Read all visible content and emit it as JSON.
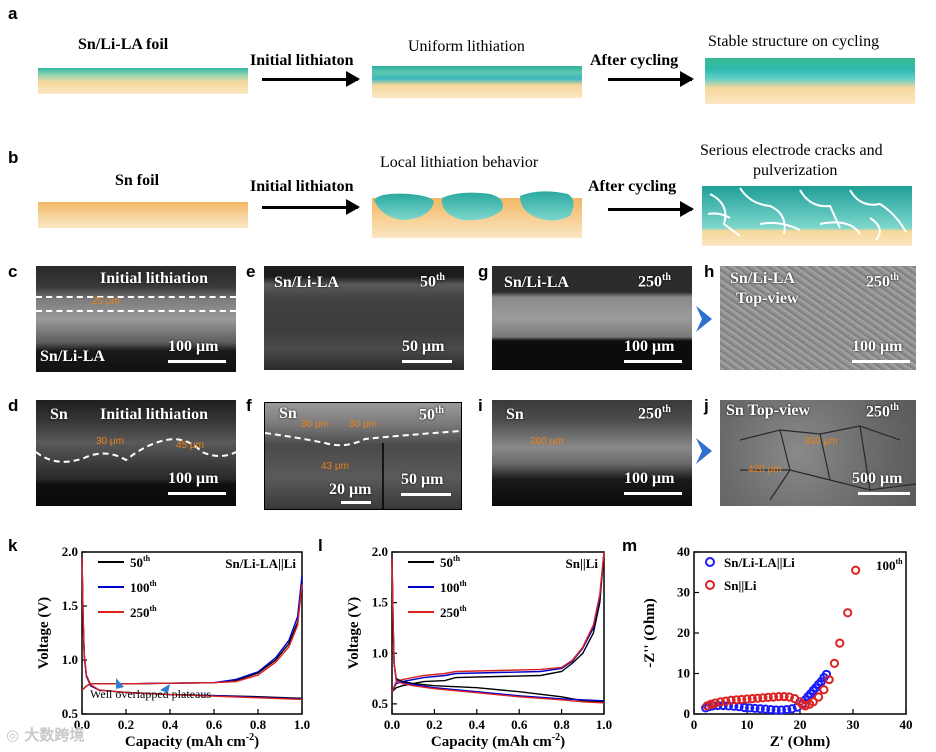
{
  "panels": {
    "a": {
      "letter": "a",
      "left_label": "Sn/Li-LA foil",
      "arrow1": "Initial lithiaton",
      "mid_label": "Uniform lithiation",
      "arrow2": "After cycling",
      "right_label": "Stable structure on cycling"
    },
    "b": {
      "letter": "b",
      "left_label": "Sn foil",
      "arrow1": "Initial lithiaton",
      "mid_label": "Local lithiation behavior",
      "arrow2": "After cycling",
      "right_label_1": "Serious electrode cracks and",
      "right_label_2": "pulverization"
    },
    "c": {
      "letter": "c",
      "title": "Initial lithiation",
      "sample": "Sn/Li-LA",
      "measure": "25 μm",
      "scale": "100 μm"
    },
    "d": {
      "letter": "d",
      "sample": "Sn",
      "title": "Initial lithiation",
      "m1": "30 μm",
      "m2": "45 μm",
      "scale": "100 μm"
    },
    "e": {
      "letter": "e",
      "sample": "Sn/Li-LA",
      "cycle": "50",
      "cycle_sup": "th",
      "scale": "50 μm"
    },
    "f": {
      "letter": "f",
      "sample": "Sn",
      "cycle": "50",
      "cycle_sup": "th",
      "m1": "36 μm",
      "m2": "30 μm",
      "m3": "43 μm",
      "scale1": "20 μm",
      "scale2": "50 μm"
    },
    "g": {
      "letter": "g",
      "sample": "Sn/Li-LA",
      "cycle": "250",
      "cycle_sup": "th",
      "scale": "100 μm"
    },
    "i": {
      "letter": "i",
      "sample": "Sn",
      "cycle": "250",
      "cycle_sup": "th",
      "m1": "260 μm",
      "scale": "100 μm"
    },
    "h": {
      "letter": "h",
      "sample": "Sn/Li-LA",
      "sub": "Top-view",
      "cycle": "250",
      "cycle_sup": "th",
      "scale": "100 μm"
    },
    "j": {
      "letter": "j",
      "sample": "Sn Top-view",
      "cycle": "250",
      "cycle_sup": "th",
      "m1": "330 μm",
      "m2": "420 μm",
      "scale": "500 μm"
    },
    "k": {
      "letter": "k"
    },
    "l": {
      "letter": "l"
    },
    "m": {
      "letter": "m"
    }
  },
  "watermark": "大数跨境",
  "colors": {
    "teal": "#2bb5a8",
    "sand": "#f6c98a",
    "blue_chev": "#2f6fd0",
    "orange": "#e8801a"
  },
  "chart_data": [
    {
      "id": "k",
      "type": "line",
      "xlabel": "Capacity (mAh cm",
      "xlabel_sup": "-2",
      "xlabel_end": ")",
      "ylabel": "Voltage (V)",
      "xlim": [
        0,
        1.0
      ],
      "ylim": [
        0.5,
        2.0
      ],
      "xticks": [
        "0.0",
        "0.2",
        "0.4",
        "0.6",
        "0.8",
        "1.0"
      ],
      "yticks": [
        "0.5",
        "1.0",
        "1.5",
        "2.0"
      ],
      "legend": [
        {
          "name": "50",
          "sup": "th",
          "color": "#000000"
        },
        {
          "name": "100",
          "sup": "th",
          "color": "#0000cc"
        },
        {
          "name": "250",
          "sup": "th",
          "color": "#dd2222"
        }
      ],
      "annotation": "Sn/Li-LA||Li",
      "note": "Well overlapped plateaus",
      "series": [
        {
          "name": "50th charge",
          "color": "#000000",
          "x": [
            0.0,
            0.01,
            0.02,
            0.04,
            0.08,
            0.2,
            0.4,
            0.6,
            0.7,
            0.8,
            0.88,
            0.94,
            0.98,
            1.0
          ],
          "y": [
            0.72,
            0.74,
            0.76,
            0.78,
            0.78,
            0.78,
            0.785,
            0.79,
            0.81,
            0.88,
            1.0,
            1.15,
            1.35,
            1.72
          ]
        },
        {
          "name": "100th charge",
          "color": "#0000cc",
          "x": [
            0.0,
            0.01,
            0.02,
            0.04,
            0.08,
            0.2,
            0.4,
            0.6,
            0.7,
            0.8,
            0.88,
            0.94,
            0.98,
            1.0
          ],
          "y": [
            0.72,
            0.74,
            0.76,
            0.78,
            0.78,
            0.78,
            0.785,
            0.79,
            0.82,
            0.89,
            1.02,
            1.18,
            1.4,
            1.78
          ]
        },
        {
          "name": "250th charge",
          "color": "#dd2222",
          "x": [
            0.0,
            0.01,
            0.02,
            0.04,
            0.08,
            0.2,
            0.4,
            0.6,
            0.7,
            0.8,
            0.88,
            0.94,
            0.98,
            1.0
          ],
          "y": [
            0.72,
            0.74,
            0.76,
            0.78,
            0.78,
            0.78,
            0.785,
            0.79,
            0.8,
            0.86,
            0.98,
            1.12,
            1.32,
            1.7
          ]
        },
        {
          "name": "50th discharge",
          "color": "#000000",
          "x": [
            0.0,
            0.005,
            0.01,
            0.02,
            0.04,
            0.08,
            0.2,
            0.4,
            0.6,
            0.8,
            1.0
          ],
          "y": [
            1.95,
            1.4,
            1.05,
            0.85,
            0.76,
            0.72,
            0.7,
            0.68,
            0.67,
            0.66,
            0.645
          ]
        },
        {
          "name": "100th discharge",
          "color": "#0000cc",
          "x": [
            0.0,
            0.005,
            0.01,
            0.02,
            0.04,
            0.08,
            0.2,
            0.4,
            0.6,
            0.8,
            1.0
          ],
          "y": [
            1.95,
            1.4,
            1.05,
            0.85,
            0.76,
            0.72,
            0.7,
            0.68,
            0.67,
            0.655,
            0.64
          ]
        },
        {
          "name": "250th discharge",
          "color": "#dd2222",
          "x": [
            0.0,
            0.005,
            0.01,
            0.02,
            0.04,
            0.08,
            0.2,
            0.4,
            0.6,
            0.8,
            1.0
          ],
          "y": [
            1.95,
            1.42,
            1.07,
            0.86,
            0.77,
            0.72,
            0.7,
            0.68,
            0.665,
            0.65,
            0.635
          ]
        }
      ]
    },
    {
      "id": "l",
      "type": "line",
      "xlabel": "Capacity (mAh cm",
      "xlabel_sup": "-2",
      "xlabel_end": ")",
      "ylabel": "Voltage (V)",
      "xlim": [
        0,
        1.0
      ],
      "ylim": [
        0.4,
        2.0
      ],
      "xticks": [
        "0.0",
        "0.2",
        "0.4",
        "0.6",
        "0.8",
        "1.0"
      ],
      "yticks": [
        "0.5",
        "1.0",
        "1.5",
        "2.0"
      ],
      "legend": [
        {
          "name": "50",
          "sup": "th",
          "color": "#000000"
        },
        {
          "name": "100",
          "sup": "th",
          "color": "#0000cc"
        },
        {
          "name": "250",
          "sup": "th",
          "color": "#dd2222"
        }
      ],
      "annotation": "Sn||Li",
      "series": [
        {
          "name": "50th charge",
          "color": "#000000",
          "x": [
            0.0,
            0.02,
            0.05,
            0.1,
            0.15,
            0.25,
            0.3,
            0.5,
            0.7,
            0.8,
            0.85,
            0.9,
            0.95,
            0.98,
            1.0
          ],
          "y": [
            0.62,
            0.66,
            0.68,
            0.7,
            0.72,
            0.73,
            0.76,
            0.77,
            0.78,
            0.82,
            0.9,
            1.0,
            1.2,
            1.5,
            2.0
          ]
        },
        {
          "name": "100th charge",
          "color": "#0000cc",
          "x": [
            0.0,
            0.02,
            0.05,
            0.1,
            0.15,
            0.25,
            0.3,
            0.5,
            0.7,
            0.8,
            0.85,
            0.9,
            0.95,
            0.98,
            1.0
          ],
          "y": [
            0.62,
            0.7,
            0.72,
            0.74,
            0.76,
            0.78,
            0.8,
            0.81,
            0.82,
            0.85,
            0.92,
            1.05,
            1.25,
            1.55,
            2.0
          ]
        },
        {
          "name": "250th charge",
          "color": "#dd2222",
          "x": [
            0.0,
            0.02,
            0.05,
            0.1,
            0.15,
            0.25,
            0.3,
            0.5,
            0.7,
            0.8,
            0.85,
            0.9,
            0.95,
            0.98,
            1.0
          ],
          "y": [
            0.62,
            0.72,
            0.74,
            0.76,
            0.78,
            0.8,
            0.82,
            0.83,
            0.84,
            0.86,
            0.93,
            1.06,
            1.28,
            1.58,
            2.0
          ]
        },
        {
          "name": "50th discharge",
          "color": "#000000",
          "x": [
            0.0,
            0.005,
            0.01,
            0.02,
            0.05,
            0.1,
            0.2,
            0.4,
            0.6,
            0.8,
            0.9,
            1.0
          ],
          "y": [
            1.95,
            1.3,
            0.9,
            0.75,
            0.72,
            0.7,
            0.68,
            0.66,
            0.62,
            0.57,
            0.53,
            0.52
          ]
        },
        {
          "name": "100th discharge",
          "color": "#0000cc",
          "x": [
            0.0,
            0.005,
            0.01,
            0.02,
            0.05,
            0.1,
            0.2,
            0.4,
            0.6,
            0.8,
            0.9,
            1.0
          ],
          "y": [
            1.95,
            1.3,
            0.9,
            0.74,
            0.71,
            0.69,
            0.66,
            0.62,
            0.58,
            0.55,
            0.54,
            0.53
          ]
        },
        {
          "name": "250th discharge",
          "color": "#dd2222",
          "x": [
            0.0,
            0.005,
            0.01,
            0.02,
            0.05,
            0.1,
            0.2,
            0.4,
            0.6,
            0.8,
            0.9,
            1.0
          ],
          "y": [
            1.95,
            1.3,
            0.9,
            0.73,
            0.7,
            0.68,
            0.65,
            0.61,
            0.57,
            0.54,
            0.52,
            0.51
          ]
        }
      ]
    },
    {
      "id": "m",
      "type": "scatter",
      "xlabel": "Z' (Ohm)",
      "ylabel": "-Z'' (Ohm)",
      "xlim": [
        0,
        40
      ],
      "ylim": [
        0,
        40
      ],
      "xticks": [
        "0",
        "10",
        "20",
        "30",
        "40"
      ],
      "yticks": [
        "0",
        "10",
        "20",
        "30",
        "40"
      ],
      "annotation": "100",
      "annotation_sup": "th",
      "series": [
        {
          "name": "Sn/Li-LA||Li",
          "color": "#1a1aff",
          "x": [
            2.2,
            2.8,
            3.5,
            4.5,
            5.5,
            6.5,
            7.5,
            8.5,
            9.5,
            10.5,
            11.5,
            12.5,
            13.5,
            14.5,
            15.5,
            16.5,
            17.5,
            18.5,
            19.5,
            20.5,
            21.0,
            21.5,
            22.0,
            22.5,
            23.0,
            23.5,
            24.0,
            24.5,
            25.0
          ],
          "y": [
            1.5,
            1.8,
            2.0,
            2.1,
            2.1,
            2.0,
            1.9,
            1.8,
            1.6,
            1.5,
            1.4,
            1.3,
            1.2,
            1.1,
            1.0,
            1.0,
            1.1,
            1.3,
            1.7,
            2.6,
            3.5,
            4.3,
            5.0,
            5.8,
            6.5,
            7.3,
            8.0,
            9.0,
            9.8
          ]
        },
        {
          "name": "Sn||Li",
          "color": "#dd2222",
          "x": [
            2.5,
            3.2,
            4.0,
            5.0,
            6.0,
            7.0,
            8.0,
            9.0,
            10.0,
            11.0,
            12.0,
            13.0,
            14.0,
            15.0,
            16.0,
            17.0,
            18.0,
            19.0,
            20.0,
            20.5,
            21.0,
            21.8,
            22.5,
            23.5,
            24.5,
            25.5,
            26.5,
            27.5,
            29.0,
            30.5
          ],
          "y": [
            2.0,
            2.4,
            2.7,
            3.0,
            3.2,
            3.4,
            3.5,
            3.6,
            3.7,
            3.8,
            3.9,
            4.0,
            4.1,
            4.2,
            4.3,
            4.3,
            4.2,
            3.8,
            3.0,
            2.3,
            2.0,
            2.4,
            3.0,
            4.2,
            6.0,
            8.5,
            12.5,
            17.5,
            25.0,
            35.5
          ]
        }
      ]
    }
  ]
}
